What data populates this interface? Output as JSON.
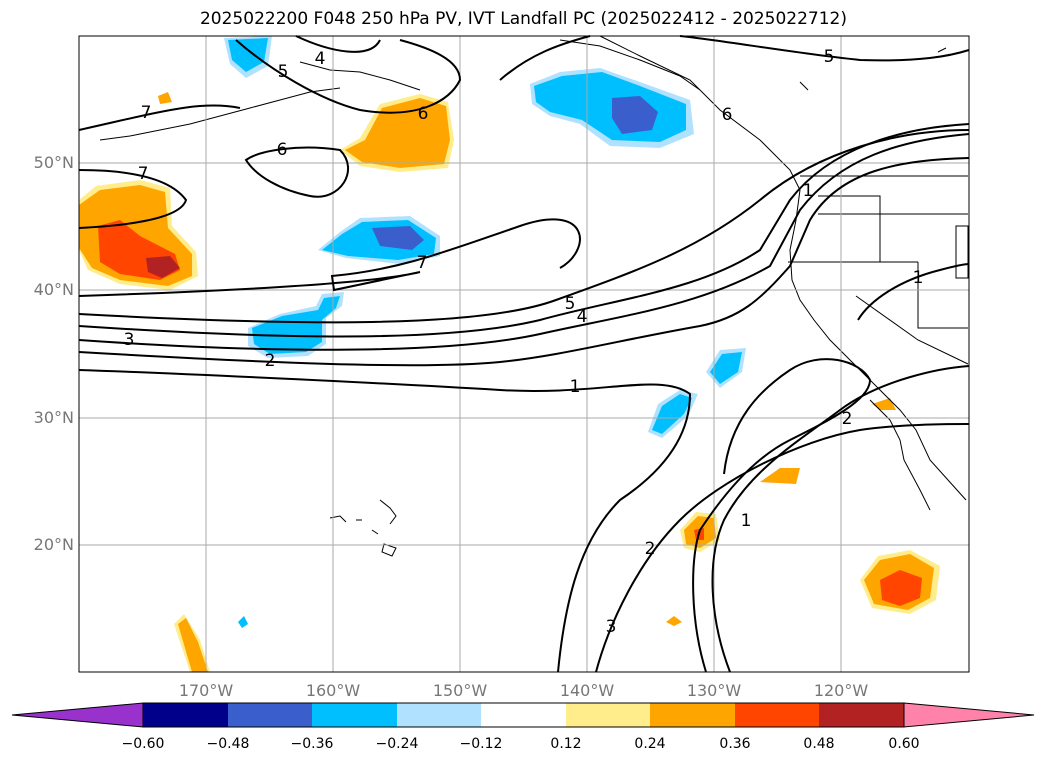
{
  "title": "2025022200 F048 250 hPa PV, IVT Landfall PC (2025022412 - 2025022712)",
  "lon_ticks": [
    "170°W",
    "160°W",
    "150°W",
    "140°W",
    "130°W",
    "120°W"
  ],
  "lat_ticks": [
    "50°N",
    "40°N",
    "30°N",
    "20°N"
  ],
  "contour_labels": [
    "7",
    "5",
    "4",
    "6",
    "6",
    "6",
    "7",
    "7",
    "5",
    "4",
    "3",
    "2",
    "1",
    "1",
    "2",
    "2",
    "1",
    "3",
    "5",
    "1"
  ],
  "colorbar": {
    "ticks": [
      "−0.60",
      "−0.48",
      "−0.36",
      "−0.24",
      "−0.12",
      "0.12",
      "0.24",
      "0.36",
      "0.48",
      "0.60"
    ],
    "colors": [
      "#9932cc",
      "#00008b",
      "#3a5fcd",
      "#00bfff",
      "#b0e2ff",
      "#ffffff",
      "#ffec8b",
      "#ffa500",
      "#ff4500",
      "#b22222",
      "#ff82ab"
    ]
  },
  "map_data": {
    "extent": {
      "lon_min": -180,
      "lon_max": -110,
      "lat_min": 10,
      "lat_max": 60
    },
    "graticule_lons": [
      -170,
      -160,
      -150,
      -140,
      -130,
      -120
    ],
    "graticule_lats": [
      20,
      30,
      40,
      50
    ],
    "variable": "250 hPa PV, IVT Landfall PC"
  }
}
